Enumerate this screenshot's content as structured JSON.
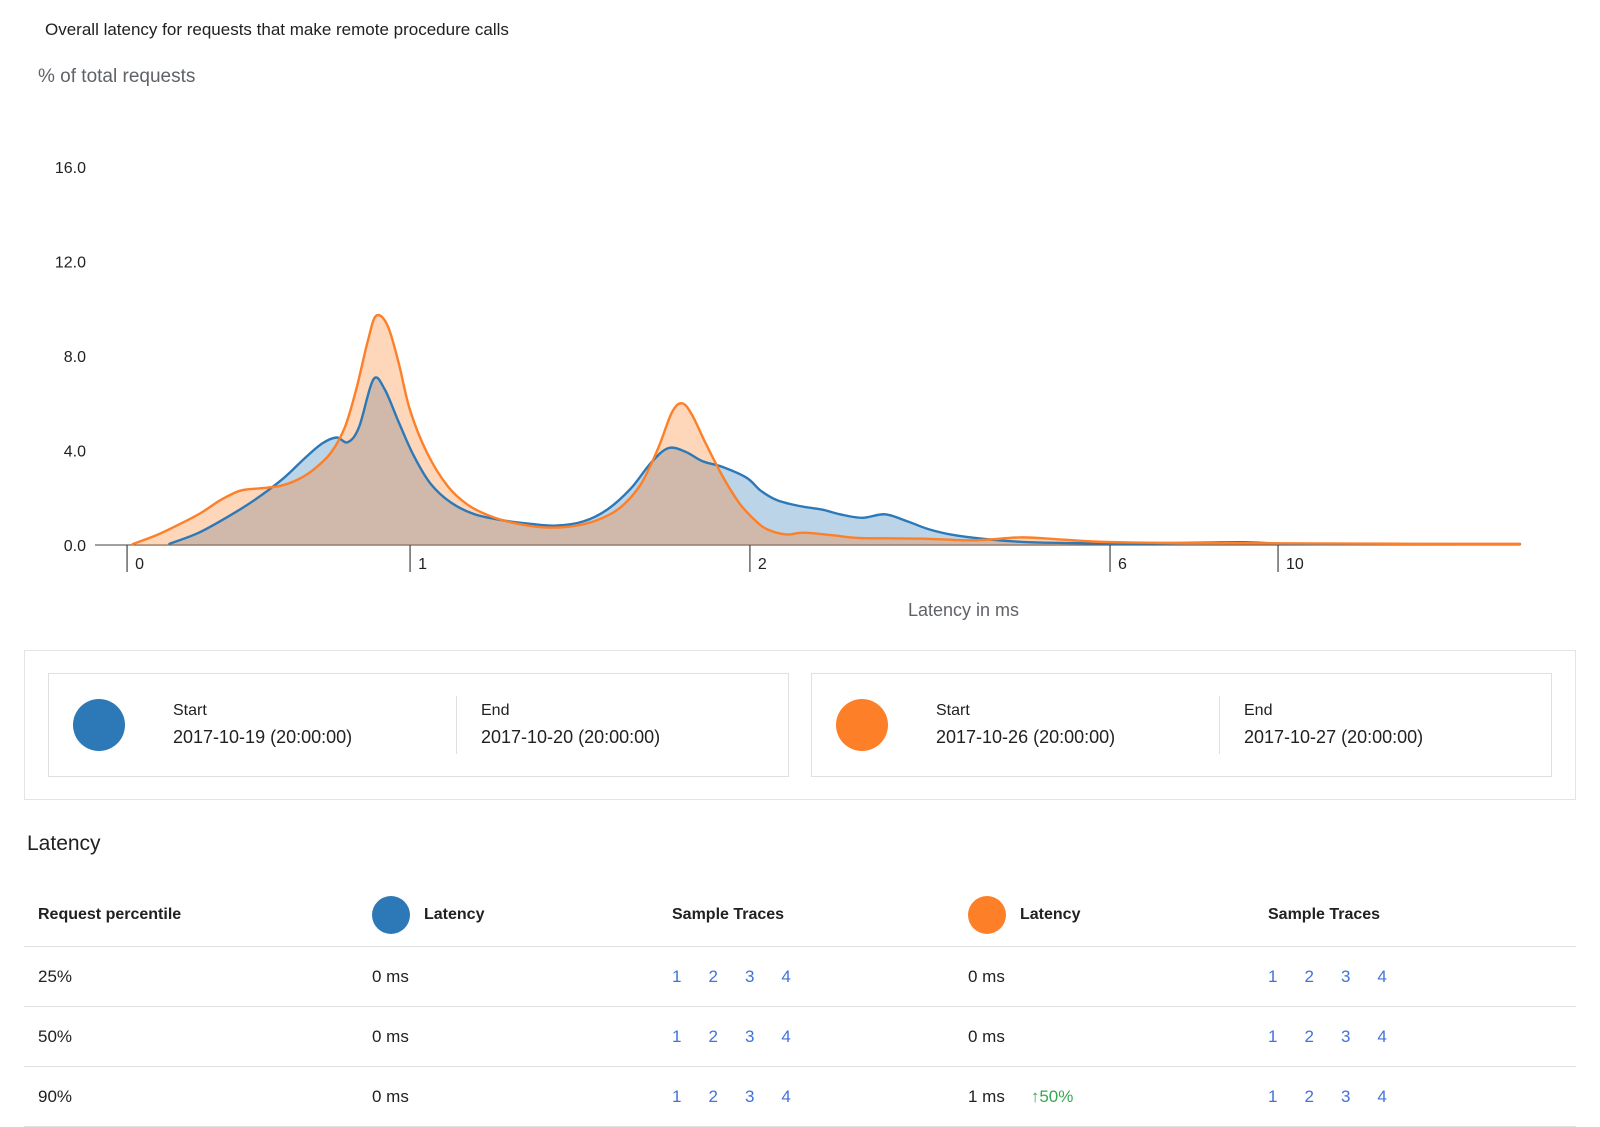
{
  "colors": {
    "series_a": "#2d79b7",
    "series_b": "#fd7f28",
    "link": "#4272db",
    "delta_up": "#34a853",
    "axis": "#424242",
    "text_secondary": "#5f6368"
  },
  "chart_data": {
    "type": "area",
    "title": "Overall latency for requests that make remote procedure calls",
    "xlabel": "Latency in ms",
    "ylabel": "% of total requests",
    "ylim": [
      0,
      16
    ],
    "y_ticks": [
      0,
      4,
      8,
      12,
      16
    ],
    "grid": false,
    "legend_position": "bottom",
    "x_ticks": [
      {
        "value": 0,
        "frac": 0.0225
      },
      {
        "value": 1,
        "frac": 0.2211
      },
      {
        "value": 2,
        "frac": 0.4596
      },
      {
        "value": 6,
        "frac": 0.7123
      },
      {
        "value": 10,
        "frac": 0.8302
      }
    ],
    "x_max_value": 20,
    "series": [
      {
        "name": "2017-10-19 (20:00:00) to 2017-10-20 (20:00:00)",
        "color": "#2d79b7",
        "points": [
          [
            0.15,
            0.05
          ],
          [
            0.25,
            0.5
          ],
          [
            0.35,
            1.15
          ],
          [
            0.45,
            1.9
          ],
          [
            0.55,
            2.8
          ],
          [
            0.63,
            3.7
          ],
          [
            0.69,
            4.3
          ],
          [
            0.74,
            4.55
          ],
          [
            0.78,
            4.35
          ],
          [
            0.82,
            5.0
          ],
          [
            0.87,
            7.0
          ],
          [
            0.91,
            6.6
          ],
          [
            0.96,
            5.2
          ],
          [
            1.01,
            3.8
          ],
          [
            1.06,
            2.6
          ],
          [
            1.12,
            1.8
          ],
          [
            1.19,
            1.3
          ],
          [
            1.27,
            1.05
          ],
          [
            1.35,
            0.9
          ],
          [
            1.43,
            0.82
          ],
          [
            1.51,
            1.0
          ],
          [
            1.58,
            1.5
          ],
          [
            1.65,
            2.4
          ],
          [
            1.71,
            3.5
          ],
          [
            1.76,
            4.1
          ],
          [
            1.81,
            3.95
          ],
          [
            1.86,
            3.55
          ],
          [
            1.92,
            3.3
          ],
          [
            1.99,
            2.85
          ],
          [
            2.12,
            2.3
          ],
          [
            2.3,
            1.9
          ],
          [
            2.55,
            1.65
          ],
          [
            2.8,
            1.5
          ],
          [
            3.0,
            1.3
          ],
          [
            3.25,
            1.15
          ],
          [
            3.5,
            1.3
          ],
          [
            3.75,
            1.0
          ],
          [
            4.0,
            0.65
          ],
          [
            4.3,
            0.4
          ],
          [
            4.7,
            0.22
          ],
          [
            5.1,
            0.12
          ],
          [
            5.6,
            0.08
          ],
          [
            6.2,
            0.06
          ],
          [
            7.0,
            0.07
          ],
          [
            8.3,
            0.1
          ],
          [
            9.2,
            0.12
          ],
          [
            10.0,
            0.06
          ],
          [
            12.0,
            0.04
          ],
          [
            15.0,
            0.04
          ],
          [
            20.0,
            0.03
          ]
        ]
      },
      {
        "name": "2017-10-26 (20:00:00) to 2017-10-27 (20:00:00)",
        "color": "#fd7f28",
        "points": [
          [
            0.02,
            0.04
          ],
          [
            0.1,
            0.4
          ],
          [
            0.18,
            0.85
          ],
          [
            0.26,
            1.35
          ],
          [
            0.33,
            1.9
          ],
          [
            0.4,
            2.3
          ],
          [
            0.47,
            2.4
          ],
          [
            0.54,
            2.5
          ],
          [
            0.6,
            2.75
          ],
          [
            0.66,
            3.2
          ],
          [
            0.72,
            3.9
          ],
          [
            0.77,
            5.0
          ],
          [
            0.81,
            6.6
          ],
          [
            0.85,
            8.6
          ],
          [
            0.88,
            9.7
          ],
          [
            0.92,
            9.3
          ],
          [
            0.96,
            7.7
          ],
          [
            1.0,
            5.7
          ],
          [
            1.05,
            3.9
          ],
          [
            1.11,
            2.5
          ],
          [
            1.17,
            1.7
          ],
          [
            1.24,
            1.2
          ],
          [
            1.31,
            0.92
          ],
          [
            1.39,
            0.75
          ],
          [
            1.47,
            0.78
          ],
          [
            1.55,
            1.05
          ],
          [
            1.62,
            1.6
          ],
          [
            1.68,
            2.6
          ],
          [
            1.73,
            4.1
          ],
          [
            1.77,
            5.6
          ],
          [
            1.8,
            6.0
          ],
          [
            1.83,
            5.5
          ],
          [
            1.87,
            4.3
          ],
          [
            1.92,
            2.9
          ],
          [
            1.97,
            1.75
          ],
          [
            2.07,
            1.0
          ],
          [
            2.2,
            0.65
          ],
          [
            2.4,
            0.45
          ],
          [
            2.6,
            0.52
          ],
          [
            2.9,
            0.42
          ],
          [
            3.2,
            0.3
          ],
          [
            3.6,
            0.28
          ],
          [
            4.0,
            0.26
          ],
          [
            4.5,
            0.2
          ],
          [
            5.0,
            0.32
          ],
          [
            5.35,
            0.26
          ],
          [
            5.8,
            0.15
          ],
          [
            6.6,
            0.1
          ],
          [
            8.0,
            0.08
          ],
          [
            10.0,
            0.07
          ],
          [
            13.0,
            0.06
          ],
          [
            16.5,
            0.05
          ],
          [
            20.0,
            0.05
          ]
        ]
      }
    ]
  },
  "legend": {
    "cards": [
      {
        "start_label": "Start",
        "start_value": "2017-10-19 (20:00:00)",
        "end_label": "End",
        "end_value": "2017-10-20 (20:00:00)"
      },
      {
        "start_label": "Start",
        "start_value": "2017-10-26 (20:00:00)",
        "end_label": "End",
        "end_value": "2017-10-27 (20:00:00)"
      }
    ]
  },
  "table": {
    "section_title": "Latency",
    "headers": {
      "percentile": "Request percentile",
      "latency_a": "Latency",
      "traces_a": "Sample Traces",
      "latency_b": "Latency",
      "traces_b": "Sample Traces"
    },
    "rows": [
      {
        "percentile": "25%",
        "latency_a": "0 ms",
        "traces_a": [
          "1",
          "2",
          "3",
          "4"
        ],
        "latency_b": "0 ms",
        "delta_b": "",
        "traces_b": [
          "1",
          "2",
          "3",
          "4"
        ]
      },
      {
        "percentile": "50%",
        "latency_a": "0 ms",
        "traces_a": [
          "1",
          "2",
          "3",
          "4"
        ],
        "latency_b": "0 ms",
        "delta_b": "",
        "traces_b": [
          "1",
          "2",
          "3",
          "4"
        ]
      },
      {
        "percentile": "90%",
        "latency_a": "0 ms",
        "traces_a": [
          "1",
          "2",
          "3",
          "4"
        ],
        "latency_b": "1 ms",
        "delta_b": "↑50%",
        "traces_b": [
          "1",
          "2",
          "3",
          "4"
        ]
      }
    ]
  }
}
